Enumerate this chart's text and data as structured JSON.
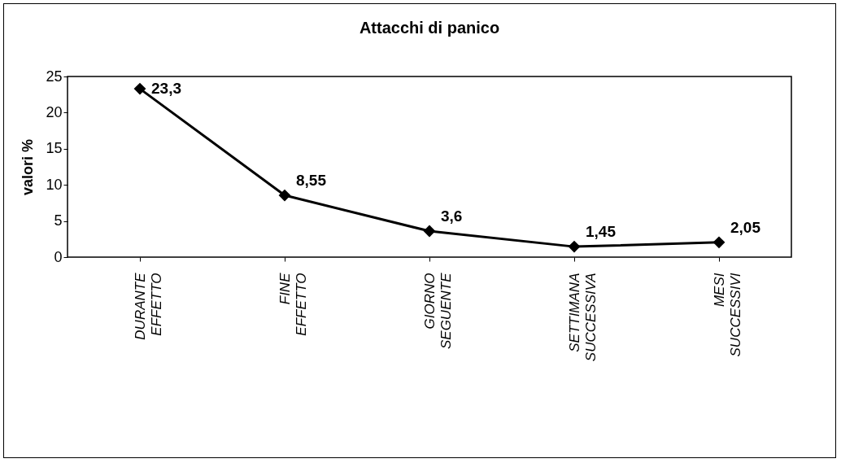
{
  "chart_data": {
    "type": "line",
    "title": "Attacchi di panico",
    "ylabel": "valori %",
    "categories": [
      "DURANTE EFFETTO",
      "FINE EFFETTO",
      "GIORNO SEGUENTE",
      "SETTIMANA SUCCESSIVA",
      "MESI SUCCESSIVI"
    ],
    "series": [
      {
        "color": "#000000",
        "values": [
          23.3,
          8.55,
          3.6,
          1.45,
          2.05
        ],
        "value_labels": [
          "23,3",
          "8,55",
          "3,6",
          "1,45",
          "2,05"
        ]
      }
    ],
    "ylim": [
      0,
      25
    ],
    "yticks": [
      0,
      5,
      10,
      15,
      20,
      25
    ],
    "grid": false,
    "legend": false,
    "marker": "diamond",
    "line_style": "solid"
  }
}
